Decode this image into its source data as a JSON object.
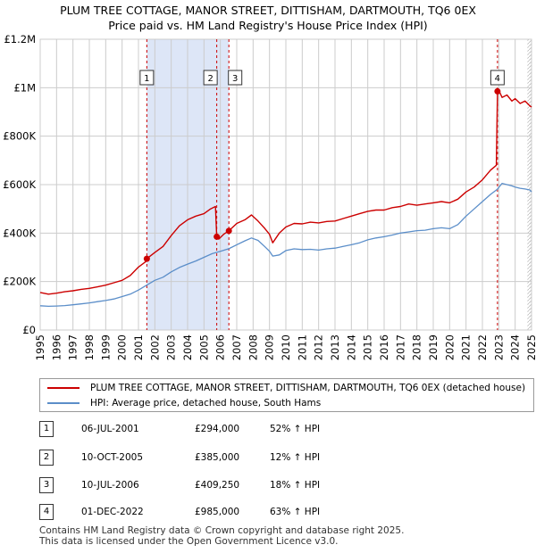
{
  "title": {
    "line1": "PLUM TREE COTTAGE, MANOR STREET, DITTISHAM, DARTMOUTH, TQ6 0EX",
    "line2": "Price paid vs. HM Land Registry's House Price Index (HPI)"
  },
  "legend": {
    "property": "PLUM TREE COTTAGE, MANOR STREET, DITTISHAM, DARTMOUTH, TQ6 0EX (detached house)",
    "hpi": "HPI: Average price, detached house, South Hams"
  },
  "sales": [
    {
      "num": "1",
      "date": "06-JUL-2001",
      "price": "£294,000",
      "hpi": "52% ↑ HPI"
    },
    {
      "num": "2",
      "date": "10-OCT-2005",
      "price": "£385,000",
      "hpi": "12% ↑ HPI"
    },
    {
      "num": "3",
      "date": "10-JUL-2006",
      "price": "£409,250",
      "hpi": "18% ↑ HPI"
    },
    {
      "num": "4",
      "date": "01-DEC-2022",
      "price": "£985,000",
      "hpi": "63% ↑ HPI"
    }
  ],
  "footer": {
    "line1": "Contains HM Land Registry data © Crown copyright and database right 2025.",
    "line2": "This data is licensed under the Open Government Licence v3.0."
  },
  "colors": {
    "property": "#cc0000",
    "hpi": "#5b8ec9",
    "shade": "#dde6f7",
    "grid": "#cccccc"
  },
  "chart_data": {
    "type": "line",
    "x_range": [
      1995,
      2025
    ],
    "ylim": [
      0,
      1200000
    ],
    "y_ticks": [
      {
        "value": 0,
        "label": "£0"
      },
      {
        "value": 200000,
        "label": "£200K"
      },
      {
        "value": 400000,
        "label": "£400K"
      },
      {
        "value": 600000,
        "label": "£600K"
      },
      {
        "value": 800000,
        "label": "£800K"
      },
      {
        "value": 1000000,
        "label": "£1M"
      },
      {
        "value": 1200000,
        "label": "£1.2M"
      }
    ],
    "x_ticks": [
      "1995",
      "1996",
      "1997",
      "1998",
      "1999",
      "2000",
      "2001",
      "2002",
      "2003",
      "2004",
      "2005",
      "2006",
      "2007",
      "2008",
      "2009",
      "2010",
      "2011",
      "2012",
      "2013",
      "2014",
      "2015",
      "2016",
      "2017",
      "2018",
      "2019",
      "2020",
      "2021",
      "2022",
      "2023",
      "2024",
      "2025"
    ],
    "shaded_span": [
      2001.51,
      2006.52
    ],
    "hatched_from": 2024.75,
    "markers": [
      {
        "label": "1",
        "x": 2001.51,
        "y": 294000
      },
      {
        "label": "2",
        "x": 2005.78,
        "y": 385000
      },
      {
        "label": "3",
        "x": 2006.52,
        "y": 409250
      },
      {
        "label": "4",
        "x": 2022.92,
        "y": 985000
      }
    ],
    "series": [
      {
        "name": "property",
        "x": [
          1995.0,
          1995.5,
          1996.0,
          1996.5,
          1997.0,
          1997.5,
          1998.0,
          1998.5,
          1999.0,
          1999.5,
          2000.0,
          2000.5,
          2001.0,
          2001.5,
          2001.51,
          2002.0,
          2002.5,
          2003.0,
          2003.5,
          2004.0,
          2004.5,
          2005.0,
          2005.4,
          2005.7,
          2005.78,
          2005.9,
          2006.2,
          2006.52,
          2007.0,
          2007.5,
          2007.9,
          2008.3,
          2008.7,
          2009.0,
          2009.2,
          2009.6,
          2010.0,
          2010.5,
          2011.0,
          2011.5,
          2012.0,
          2012.5,
          2013.0,
          2013.5,
          2014.0,
          2014.5,
          2015.0,
          2015.5,
          2016.0,
          2016.5,
          2017.0,
          2017.5,
          2018.0,
          2018.5,
          2019.0,
          2019.5,
          2020.0,
          2020.5,
          2021.0,
          2021.5,
          2022.0,
          2022.5,
          2022.85,
          2022.92,
          2023.0,
          2023.2,
          2023.5,
          2023.8,
          2024.0,
          2024.3,
          2024.6,
          2024.9,
          2025.0
        ],
        "values": [
          155000,
          148000,
          152000,
          158000,
          162000,
          168000,
          172000,
          178000,
          185000,
          195000,
          205000,
          225000,
          260000,
          285000,
          294000,
          320000,
          345000,
          390000,
          430000,
          455000,
          470000,
          480000,
          500000,
          510000,
          385000,
          375000,
          395000,
          409250,
          440000,
          455000,
          475000,
          450000,
          420000,
          395000,
          360000,
          400000,
          425000,
          440000,
          438000,
          445000,
          442000,
          448000,
          450000,
          460000,
          470000,
          480000,
          490000,
          495000,
          495000,
          505000,
          510000,
          520000,
          515000,
          520000,
          525000,
          530000,
          525000,
          540000,
          570000,
          590000,
          620000,
          660000,
          680000,
          985000,
          990000,
          960000,
          970000,
          945000,
          955000,
          935000,
          945000,
          925000,
          920000
        ]
      },
      {
        "name": "hpi",
        "x": [
          1995.0,
          1995.5,
          1996.0,
          1996.5,
          1997.0,
          1997.5,
          1998.0,
          1998.5,
          1999.0,
          1999.5,
          2000.0,
          2000.5,
          2001.0,
          2001.5,
          2002.0,
          2002.5,
          2003.0,
          2003.5,
          2004.0,
          2004.5,
          2005.0,
          2005.5,
          2006.0,
          2006.5,
          2007.0,
          2007.5,
          2007.9,
          2008.3,
          2008.7,
          2009.0,
          2009.2,
          2009.6,
          2010.0,
          2010.5,
          2011.0,
          2011.5,
          2012.0,
          2012.5,
          2013.0,
          2013.5,
          2014.0,
          2014.5,
          2015.0,
          2015.5,
          2016.0,
          2016.5,
          2017.0,
          2017.5,
          2018.0,
          2018.5,
          2019.0,
          2019.5,
          2020.0,
          2020.5,
          2021.0,
          2021.5,
          2022.0,
          2022.5,
          2022.9,
          2023.2,
          2023.5,
          2023.8,
          2024.0,
          2024.3,
          2024.6,
          2024.9,
          2025.0
        ],
        "values": [
          100000,
          98000,
          99000,
          101000,
          104000,
          108000,
          112000,
          117000,
          122000,
          128000,
          138000,
          148000,
          165000,
          185000,
          205000,
          218000,
          240000,
          258000,
          272000,
          285000,
          300000,
          315000,
          325000,
          335000,
          352000,
          368000,
          380000,
          370000,
          345000,
          325000,
          305000,
          310000,
          328000,
          335000,
          332000,
          333000,
          330000,
          335000,
          338000,
          345000,
          352000,
          360000,
          372000,
          380000,
          385000,
          392000,
          400000,
          405000,
          410000,
          412000,
          418000,
          422000,
          418000,
          435000,
          470000,
          500000,
          530000,
          560000,
          580000,
          605000,
          600000,
          595000,
          590000,
          585000,
          582000,
          578000,
          570000
        ]
      }
    ]
  }
}
